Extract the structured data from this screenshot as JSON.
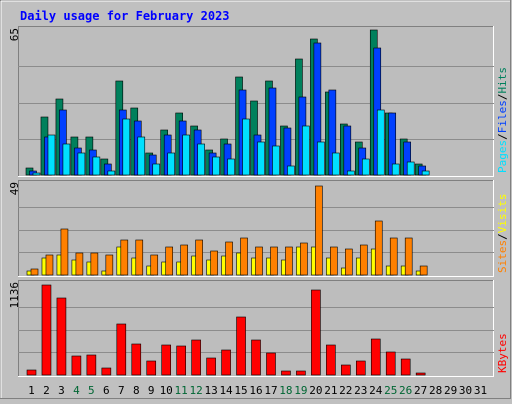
{
  "title": "Daily usage for February 2023",
  "colors": {
    "background": "#c0c0c0",
    "panel": "#bdbdbd",
    "hits": "#00805c",
    "files": "#0040ff",
    "pages": "#00e0ff",
    "visits": "#ffff00",
    "sites": "#ff8000",
    "kbytes": "#ff0000",
    "title": "#0000ff",
    "label_sep": "#000000",
    "weekend_label": "#006633"
  },
  "chart_data": [
    {
      "type": "bar",
      "panel": "hits_files_pages",
      "ymax_label": "65",
      "ylim": [
        0,
        65
      ],
      "legend": [
        "Pages",
        "Files",
        "Hits"
      ],
      "categories": [
        "1",
        "2",
        "3",
        "4",
        "5",
        "6",
        "7",
        "8",
        "9",
        "10",
        "11",
        "12",
        "13",
        "14",
        "15",
        "16",
        "17",
        "18",
        "19",
        "20",
        "21",
        "22",
        "23",
        "24",
        "25",
        "26",
        "27",
        "28",
        "29",
        "30",
        "31"
      ],
      "series": [
        {
          "name": "Hits",
          "values": [
            3,
            26,
            34,
            17,
            17,
            7,
            42,
            30,
            10,
            20,
            28,
            22,
            11,
            16,
            44,
            33,
            42,
            22,
            52,
            61,
            37,
            23,
            15,
            65,
            28,
            16,
            5,
            0,
            0,
            0,
            0
          ]
        },
        {
          "name": "Files",
          "values": [
            2,
            17,
            29,
            12,
            11,
            5,
            29,
            24,
            9,
            18,
            24,
            20,
            10,
            14,
            38,
            18,
            39,
            21,
            35,
            59,
            38,
            22,
            12,
            57,
            28,
            15,
            4,
            0,
            0,
            0,
            0
          ]
        },
        {
          "name": "Pages",
          "values": [
            1,
            18,
            14,
            10,
            8,
            2,
            25,
            17,
            5,
            10,
            18,
            14,
            8,
            7,
            25,
            15,
            13,
            4,
            22,
            15,
            10,
            2,
            7,
            29,
            5,
            6,
            2,
            0,
            0,
            0,
            0
          ]
        }
      ]
    },
    {
      "type": "bar",
      "panel": "visits_sites",
      "ymax_label": "49",
      "ylim": [
        0,
        49
      ],
      "legend": [
        "Sites",
        "Visits"
      ],
      "categories": [
        "1",
        "2",
        "3",
        "4",
        "5",
        "6",
        "7",
        "8",
        "9",
        "10",
        "11",
        "12",
        "13",
        "14",
        "15",
        "16",
        "17",
        "18",
        "19",
        "20",
        "21",
        "22",
        "23",
        "24",
        "25",
        "26",
        "27",
        "28",
        "29",
        "30",
        "31"
      ],
      "series": [
        {
          "name": "Visits",
          "values": [
            2,
            9,
            11,
            8,
            7,
            2,
            15,
            9,
            5,
            7,
            7,
            10,
            8,
            10,
            12,
            9,
            9,
            8,
            15,
            15,
            9,
            4,
            9,
            14,
            5,
            5,
            2,
            0,
            0,
            0,
            0
          ]
        },
        {
          "name": "Sites",
          "values": [
            3,
            11,
            25,
            12,
            12,
            11,
            19,
            19,
            11,
            15,
            16,
            19,
            13,
            18,
            20,
            15,
            15,
            15,
            17,
            48,
            15,
            14,
            16,
            29,
            20,
            20,
            5,
            0,
            0,
            0,
            0
          ]
        }
      ]
    },
    {
      "type": "bar",
      "panel": "kbytes",
      "ymax_label": "1136",
      "ylim": [
        0,
        1136
      ],
      "legend": [
        "KBytes"
      ],
      "categories": [
        "1",
        "2",
        "3",
        "4",
        "5",
        "6",
        "7",
        "8",
        "9",
        "10",
        "11",
        "12",
        "13",
        "14",
        "15",
        "16",
        "17",
        "18",
        "19",
        "20",
        "21",
        "22",
        "23",
        "24",
        "25",
        "26",
        "27",
        "28",
        "29",
        "30",
        "31"
      ],
      "weekend_days": [
        4,
        5,
        11,
        12,
        18,
        19,
        25,
        26
      ],
      "series": [
        {
          "name": "KBytes",
          "values": [
            60,
            1120,
            960,
            240,
            250,
            90,
            640,
            390,
            180,
            370,
            360,
            440,
            210,
            310,
            720,
            440,
            280,
            50,
            50,
            1060,
            380,
            130,
            180,
            450,
            290,
            200,
            20,
            0,
            0,
            0,
            0
          ]
        }
      ]
    }
  ]
}
